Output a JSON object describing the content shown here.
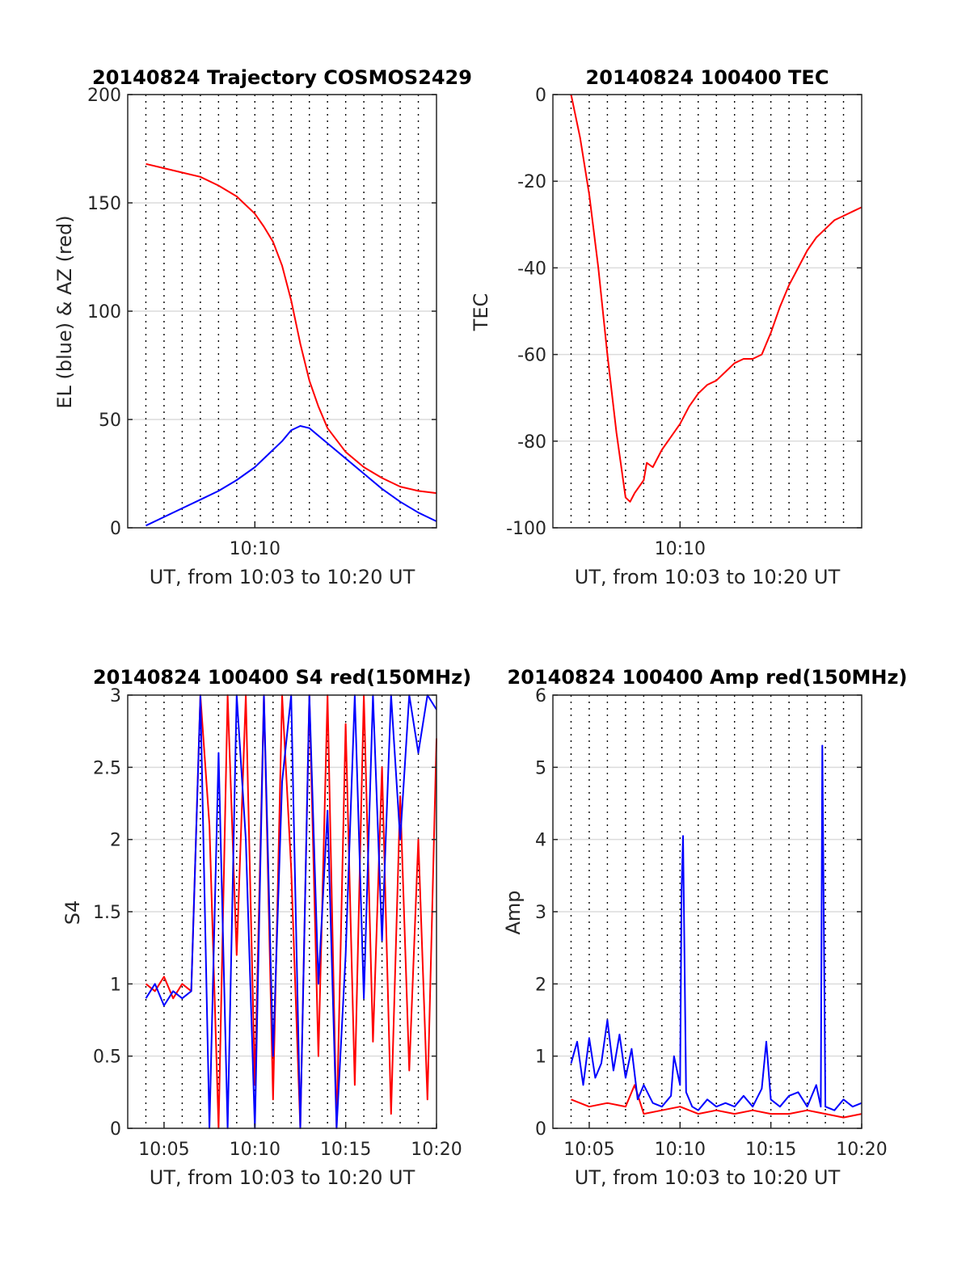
{
  "x_axis_label": "UT, from 10:03 to 10:20 UT",
  "chart_data": [
    {
      "type": "line",
      "title": "20140824 Trajectory COSMOS2429",
      "xlabel": "UT, from 10:03 to 10:20 UT",
      "ylabel": "EL (blue) & AZ (red)",
      "xlim": [
        "10:03",
        "10:20"
      ],
      "ylim": [
        0,
        200
      ],
      "xticks": [
        "10:10"
      ],
      "yticks": [
        0,
        50,
        100,
        150,
        200
      ],
      "grid": true,
      "colors": {
        "AZ": "#ff0000",
        "EL": "#0000ff"
      },
      "series": [
        {
          "color": "#ff0000",
          "x": [
            "10:04:00",
            "10:05:00",
            "10:06:00",
            "10:07:00",
            "10:08:00",
            "10:09:00",
            "10:10:00",
            "10:10:30",
            "10:11:00",
            "10:11:30",
            "10:12:00",
            "10:12:30",
            "10:13:00",
            "10:13:30",
            "10:14:00",
            "10:15:00",
            "10:16:00",
            "10:17:00",
            "10:18:00",
            "10:19:00",
            "10:20:00"
          ],
          "y": [
            168,
            166,
            164,
            162,
            158,
            153,
            145,
            139,
            132,
            121,
            105,
            85,
            68,
            56,
            46,
            35,
            28,
            23,
            19,
            17,
            16
          ]
        },
        {
          "color": "#0000ff",
          "x": [
            "10:04:00",
            "10:05:00",
            "10:06:00",
            "10:07:00",
            "10:08:00",
            "10:09:00",
            "10:10:00",
            "10:11:00",
            "10:11:30",
            "10:12:00",
            "10:12:30",
            "10:13:00",
            "10:14:00",
            "10:15:00",
            "10:16:00",
            "10:17:00",
            "10:18:00",
            "10:19:00",
            "10:20:00"
          ],
          "y": [
            1,
            5,
            9,
            13,
            17,
            22,
            28,
            36,
            40,
            45,
            47,
            46,
            39,
            32,
            25,
            18,
            12,
            7,
            3
          ]
        }
      ]
    },
    {
      "type": "line",
      "title": "20140824 100400 TEC",
      "xlabel": "UT, from 10:03 to 10:20 UT",
      "ylabel": "TEC",
      "xlim": [
        "10:03",
        "10:20"
      ],
      "ylim": [
        -100,
        0
      ],
      "xticks": [
        "10:10"
      ],
      "yticks": [
        -100,
        -80,
        -60,
        -40,
        -20,
        0
      ],
      "grid": true,
      "series": [
        {
          "color": "#ff0000",
          "x": [
            "10:04:00",
            "10:04:30",
            "10:05:00",
            "10:05:30",
            "10:06:00",
            "10:06:30",
            "10:07:00",
            "10:07:15",
            "10:07:30",
            "10:08:00",
            "10:08:10",
            "10:08:30",
            "10:09:00",
            "10:09:30",
            "10:10:00",
            "10:10:30",
            "10:11:00",
            "10:11:30",
            "10:12:00",
            "10:12:30",
            "10:13:00",
            "10:13:30",
            "10:14:00",
            "10:14:30",
            "10:15:00",
            "10:15:30",
            "10:16:00",
            "10:16:30",
            "10:17:00",
            "10:17:30",
            "10:18:00",
            "10:18:30",
            "10:19:00",
            "10:19:30",
            "10:20:00"
          ],
          "y": [
            0,
            -10,
            -23,
            -40,
            -60,
            -78,
            -93,
            -94,
            -92,
            -89,
            -85,
            -86,
            -82,
            -79,
            -76,
            -72,
            -69,
            -67,
            -66,
            -64,
            -62,
            -61,
            -61,
            -60,
            -55,
            -49,
            -44,
            -40,
            -36,
            -33,
            -31,
            -29,
            -28,
            -27,
            -26
          ]
        }
      ]
    },
    {
      "type": "line",
      "title": "20140824 100400 S4 red(150MHz)",
      "xlabel": "UT, from 10:03 to 10:20 UT",
      "ylabel": "S4",
      "xlim": [
        "10:03",
        "10:20"
      ],
      "ylim": [
        0,
        3
      ],
      "xticks": [
        "10:05",
        "10:10",
        "10:15",
        "10:20"
      ],
      "yticks": [
        0,
        0.5,
        1,
        1.5,
        2,
        2.5,
        3
      ],
      "grid": true,
      "series": [
        {
          "color": "#ff0000",
          "x": [
            "10:04:00",
            "10:04:30",
            "10:05:00",
            "10:05:30",
            "10:06:00",
            "10:06:30",
            "10:07:00",
            "10:07:30",
            "10:08:00",
            "10:08:30",
            "10:09:00",
            "10:09:30",
            "10:10:00",
            "10:10:30",
            "10:11:00",
            "10:11:30",
            "10:12:00",
            "10:12:30",
            "10:13:00",
            "10:13:30",
            "10:14:00",
            "10:14:30",
            "10:15:00",
            "10:15:30",
            "10:16:00",
            "10:16:30",
            "10:17:00",
            "10:17:30",
            "10:18:00",
            "10:18:30",
            "10:19:00",
            "10:19:30",
            "10:20:00"
          ],
          "y": [
            1.0,
            0.95,
            1.05,
            0.9,
            1.0,
            0.95,
            3.0,
            2.1,
            0.0,
            3.0,
            1.2,
            3.0,
            0.3,
            3.0,
            0.2,
            3.0,
            1.8,
            0.0,
            3.0,
            0.5,
            3.0,
            0.0,
            2.8,
            0.3,
            3.0,
            0.6,
            2.5,
            0.1,
            2.3,
            0.4,
            2.0,
            0.2,
            2.7
          ]
        },
        {
          "color": "#0000ff",
          "x": [
            "10:04:00",
            "10:04:30",
            "10:05:00",
            "10:05:30",
            "10:06:00",
            "10:06:30",
            "10:07:00",
            "10:07:30",
            "10:08:00",
            "10:08:30",
            "10:09:00",
            "10:09:30",
            "10:10:00",
            "10:10:30",
            "10:11:00",
            "10:11:30",
            "10:12:00",
            "10:12:30",
            "10:13:00",
            "10:13:30",
            "10:14:00",
            "10:14:30",
            "10:15:00",
            "10:15:30",
            "10:16:00",
            "10:16:30",
            "10:17:00",
            "10:17:30",
            "10:18:00",
            "10:18:30",
            "10:19:00",
            "10:19:30",
            "10:20:00"
          ],
          "y": [
            0.9,
            1.0,
            0.85,
            0.95,
            0.9,
            0.95,
            3.0,
            0.0,
            2.6,
            0.0,
            3.0,
            2.0,
            0.0,
            3.0,
            0.5,
            2.4,
            3.0,
            0.0,
            3.0,
            1.0,
            2.2,
            0.0,
            1.2,
            3.0,
            0.9,
            3.0,
            1.3,
            3.0,
            2.0,
            3.0,
            2.6,
            3.0,
            2.9
          ]
        }
      ]
    },
    {
      "type": "line",
      "title": "20140824 100400 Amp red(150MHz)",
      "xlabel": "UT, from 10:03 to 10:20 UT",
      "ylabel": "Amp",
      "xlim": [
        "10:03",
        "10:20"
      ],
      "ylim": [
        0,
        6
      ],
      "xticks": [
        "10:05",
        "10:10",
        "10:15",
        "10:20"
      ],
      "yticks": [
        0,
        1,
        2,
        3,
        4,
        5,
        6
      ],
      "grid": true,
      "series": [
        {
          "color": "#ff0000",
          "x": [
            "10:04:00",
            "10:05:00",
            "10:06:00",
            "10:07:00",
            "10:07:30",
            "10:08:00",
            "10:09:00",
            "10:10:00",
            "10:11:00",
            "10:12:00",
            "10:13:00",
            "10:14:00",
            "10:15:00",
            "10:16:00",
            "10:17:00",
            "10:18:00",
            "10:19:00",
            "10:20:00"
          ],
          "y": [
            0.4,
            0.3,
            0.35,
            0.3,
            0.6,
            0.2,
            0.25,
            0.3,
            0.2,
            0.25,
            0.2,
            0.25,
            0.2,
            0.2,
            0.25,
            0.2,
            0.15,
            0.2
          ]
        },
        {
          "color": "#0000ff",
          "x": [
            "10:04:00",
            "10:04:20",
            "10:04:40",
            "10:05:00",
            "10:05:20",
            "10:05:40",
            "10:06:00",
            "10:06:20",
            "10:06:40",
            "10:07:00",
            "10:07:20",
            "10:07:40",
            "10:08:00",
            "10:08:30",
            "10:09:00",
            "10:09:30",
            "10:09:40",
            "10:10:00",
            "10:10:05",
            "10:10:10",
            "10:10:20",
            "10:10:40",
            "10:11:00",
            "10:11:30",
            "10:12:00",
            "10:12:30",
            "10:13:00",
            "10:13:30",
            "10:14:00",
            "10:14:30",
            "10:14:45",
            "10:15:00",
            "10:15:30",
            "10:16:00",
            "10:16:30",
            "10:17:00",
            "10:17:30",
            "10:17:45",
            "10:17:50",
            "10:18:00",
            "10:18:30",
            "10:19:00",
            "10:19:30",
            "10:20:00"
          ],
          "y": [
            0.9,
            1.2,
            0.6,
            1.25,
            0.7,
            0.9,
            1.5,
            0.8,
            1.3,
            0.7,
            1.1,
            0.4,
            0.6,
            0.35,
            0.3,
            0.45,
            1.0,
            0.6,
            3.3,
            4.05,
            0.5,
            0.3,
            0.25,
            0.4,
            0.3,
            0.35,
            0.3,
            0.45,
            0.3,
            0.55,
            1.2,
            0.4,
            0.3,
            0.45,
            0.5,
            0.3,
            0.6,
            0.3,
            5.3,
            0.3,
            0.25,
            0.4,
            0.3,
            0.35
          ]
        }
      ]
    }
  ]
}
